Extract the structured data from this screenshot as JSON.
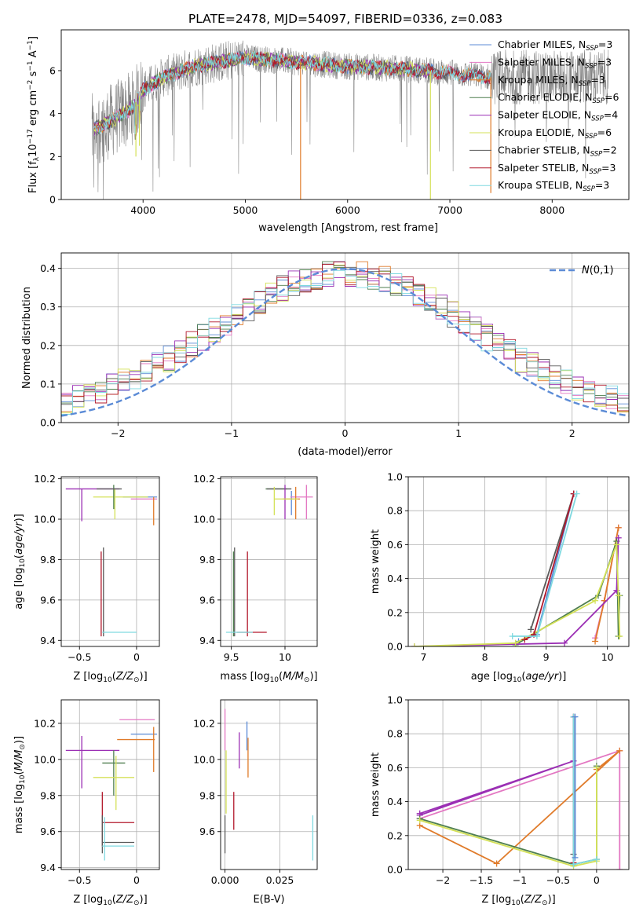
{
  "figure_title": "PLATE=2478, MJD=54097, FIBERID=0336, z=0.083",
  "colors": {
    "chabrier_miles": "#5b8bd6",
    "salpeter_miles": "#e377c2",
    "kroupa_miles": "#e07b2a",
    "chabrier_elodie": "#4f7f4f",
    "salpeter_elodie": "#9b2fb4",
    "kroupa_elodie": "#d4e157",
    "chabrier_stelib": "#5a5a5a",
    "salpeter_stelib": "#b2182b",
    "kroupa_stelib": "#7fd9e0",
    "data": "#808080",
    "normal": "#5b8bd6",
    "grid": "#b0b0b0"
  },
  "chart_data": [
    {
      "id": "spectrum",
      "type": "line",
      "xlabel": "wavelength [Angstrom, rest frame]",
      "ylabel": "Flux [f_λ 10^-17 erg cm^-2 s^-1 A^-1]",
      "xlim": [
        3200,
        8750
      ],
      "ylim": [
        0,
        7.9
      ],
      "xticks": [
        4000,
        5000,
        6000,
        7000,
        8000
      ],
      "yticks": [
        0,
        2,
        4,
        6
      ],
      "grid": false,
      "legend_position": "top-right",
      "legend": [
        "Chabrier MILES, N_SSP=3",
        "Salpeter MILES, N_SSP=3",
        "Kroupa MILES, N_SSP=3",
        "Chabrier ELODIE, N_SSP=6",
        "Salpeter ELODIE, N_SSP=4",
        "Kroupa ELODIE, N_SSP=6",
        "Chabrier STELIB, N_SSP=2",
        "Salpeter STELIB, N_SSP=3",
        "Kroupa STELIB, N_SSP=3"
      ],
      "data_range": [
        3500,
        8550
      ],
      "continuum": [
        [
          3500,
          3.2
        ],
        [
          3700,
          3.7
        ],
        [
          3900,
          4.3
        ],
        [
          4000,
          5.1
        ],
        [
          4200,
          5.7
        ],
        [
          4500,
          6.2
        ],
        [
          5000,
          6.6
        ],
        [
          5500,
          6.4
        ],
        [
          6000,
          6.2
        ],
        [
          6500,
          6.1
        ],
        [
          7000,
          5.9
        ],
        [
          7400,
          5.7
        ]
      ],
      "model_dips": [
        [
          5540,
          0
        ],
        [
          6810,
          0
        ],
        [
          3930,
          2.0
        ],
        [
          3965,
          2.5
        ],
        [
          7400,
          0.3
        ]
      ]
    },
    {
      "id": "residuals",
      "type": "histogram",
      "xlabel": "(data-model)/error",
      "ylabel": "Normed distribution",
      "xlim": [
        -2.5,
        2.5
      ],
      "ylim": [
        0,
        0.44
      ],
      "xticks": [
        -2,
        -1,
        0,
        1,
        2
      ],
      "yticks": [
        0.0,
        0.1,
        0.2,
        0.3,
        0.4
      ],
      "grid": true,
      "legend_position": "top-right",
      "normal_label": "N(0,1)",
      "bin_width": 0.1,
      "bins": 50
    },
    {
      "id": "age_vs_Z",
      "type": "errorbar",
      "xlabel": "Z [log10(Z/Z⊙)]",
      "ylabel": "age [log10(age/yr)]",
      "xlim": [
        -0.66,
        0.2
      ],
      "ylim": [
        9.37,
        10.21
      ],
      "xticks": [
        -0.5,
        0.0
      ],
      "yticks": [
        9.4,
        9.6,
        9.8,
        10.0,
        10.2
      ],
      "grid": true,
      "segments": [
        {
          "series": "chabrier_miles",
          "x": [
            -0.12,
            0.18
          ],
          "y": [
            10.11,
            10.11
          ]
        },
        {
          "series": "salpeter_miles",
          "x": [
            -0.05,
            0.18
          ],
          "y": [
            10.1,
            10.1
          ]
        },
        {
          "series": "kroupa_miles",
          "x": [
            0.15,
            0.15
          ],
          "y": [
            9.97,
            10.11
          ]
        },
        {
          "series": "salpeter_elodie",
          "x": [
            -0.62,
            -0.15
          ],
          "y": [
            10.15,
            10.15
          ]
        },
        {
          "series": "salpeter_elodie",
          "x": [
            -0.48,
            -0.48
          ],
          "y": [
            9.99,
            10.15
          ]
        },
        {
          "series": "kroupa_elodie",
          "x": [
            -0.38,
            0.1
          ],
          "y": [
            10.11,
            10.11
          ]
        },
        {
          "series": "kroupa_elodie",
          "x": [
            -0.19,
            -0.19
          ],
          "y": [
            10.0,
            10.15
          ]
        },
        {
          "series": "chabrier_elodie",
          "x": [
            -0.2,
            -0.2
          ],
          "y": [
            10.05,
            10.17
          ]
        },
        {
          "series": "chabrier_stelib",
          "x": [
            -0.35,
            -0.13
          ],
          "y": [
            10.15,
            10.15
          ]
        },
        {
          "series": "chabrier_stelib",
          "x": [
            -0.29,
            -0.29
          ],
          "y": [
            9.42,
            9.86
          ]
        },
        {
          "series": "salpeter_stelib",
          "x": [
            -0.31,
            -0.31
          ],
          "y": [
            9.42,
            9.84
          ]
        },
        {
          "series": "kroupa_stelib",
          "x": [
            -0.3,
            0.0
          ],
          "y": [
            9.44,
            9.44
          ]
        }
      ]
    },
    {
      "id": "age_vs_mass",
      "type": "errorbar",
      "xlabel": "mass [log10(M/M⊙)]",
      "ylabel": "",
      "xlim": [
        9.4,
        10.3
      ],
      "ylim": [
        9.37,
        10.21
      ],
      "xticks": [
        9.5,
        10.0
      ],
      "yticks": [
        9.4,
        9.6,
        9.8,
        10.0,
        10.2
      ],
      "grid": true,
      "segments": [
        {
          "series": "chabrier_elodie",
          "x": [
            9.82,
            10.02
          ],
          "y": [
            10.15,
            10.15
          ]
        },
        {
          "series": "chabrier_stelib",
          "x": [
            9.83,
            10.06
          ],
          "y": [
            10.15,
            10.15
          ]
        },
        {
          "series": "chabrier_miles",
          "x": [
            10.06,
            10.06
          ],
          "y": [
            10.02,
            10.14
          ]
        },
        {
          "series": "salpeter_miles",
          "x": [
            10.05,
            10.26
          ],
          "y": [
            10.11,
            10.11
          ]
        },
        {
          "series": "salpeter_miles",
          "x": [
            10.2,
            10.2
          ],
          "y": [
            10.0,
            10.17
          ]
        },
        {
          "series": "kroupa_miles",
          "x": [
            9.98,
            10.14
          ],
          "y": [
            10.1,
            10.1
          ]
        },
        {
          "series": "kroupa_miles",
          "x": [
            10.1,
            10.1
          ],
          "y": [
            10.0,
            10.16
          ]
        },
        {
          "series": "salpeter_elodie",
          "x": [
            10.0,
            10.0
          ],
          "y": [
            10.0,
            10.17
          ]
        },
        {
          "series": "kroupa_elodie",
          "x": [
            9.9,
            10.12
          ],
          "y": [
            10.1,
            10.1
          ]
        },
        {
          "series": "kroupa_elodie",
          "x": [
            9.9,
            9.9
          ],
          "y": [
            10.02,
            10.16
          ]
        },
        {
          "series": "chabrier_stelib",
          "x": [
            9.53,
            9.53
          ],
          "y": [
            9.42,
            9.86
          ]
        },
        {
          "series": "chabrier_elodie",
          "x": [
            9.52,
            9.52
          ],
          "y": [
            9.42,
            9.84
          ]
        },
        {
          "series": "salpeter_stelib",
          "x": [
            9.55,
            9.83
          ],
          "y": [
            9.44,
            9.44
          ]
        },
        {
          "series": "salpeter_stelib",
          "x": [
            9.65,
            9.65
          ],
          "y": [
            9.42,
            9.84
          ]
        },
        {
          "series": "kroupa_stelib",
          "x": [
            9.45,
            9.7
          ],
          "y": [
            9.44,
            9.44
          ]
        }
      ]
    },
    {
      "id": "weight_vs_age",
      "type": "line",
      "xlabel": "age [log10(age/yr)]",
      "ylabel": "mass weight",
      "xlim": [
        6.75,
        10.35
      ],
      "ylim": [
        0,
        1.0
      ],
      "xticks": [
        7,
        8,
        9,
        10
      ],
      "yticks": [
        0.0,
        0.2,
        0.4,
        0.6,
        0.8,
        1.0
      ],
      "grid": true,
      "series": [
        {
          "series": "chabrier_miles",
          "x": [
            8.55,
            8.85,
            9.45
          ],
          "y": [
            0.03,
            0.07,
            0.9
          ]
        },
        {
          "series": "salpeter_miles",
          "x": [
            9.8,
            9.95,
            10.18
          ],
          "y": [
            0.05,
            0.27,
            0.7
          ]
        },
        {
          "series": "kroupa_miles",
          "x": [
            9.8,
            9.95,
            10.18
          ],
          "y": [
            0.03,
            0.27,
            0.7
          ]
        },
        {
          "series": "chabrier_elodie",
          "x": [
            8.5,
            9.85,
            10.15,
            10.18,
            10.2
          ],
          "y": [
            0.01,
            0.3,
            0.62,
            0.06,
            0.3
          ]
        },
        {
          "series": "salpeter_elodie",
          "x": [
            6.85,
            9.3,
            10.15,
            10.18
          ],
          "y": [
            0.0,
            0.02,
            0.33,
            0.64
          ]
        },
        {
          "series": "kroupa_elodie",
          "x": [
            6.85,
            8.5,
            9.8,
            10.15,
            10.18,
            10.2
          ],
          "y": [
            0.0,
            0.02,
            0.27,
            0.6,
            0.3,
            0.06
          ]
        },
        {
          "series": "chabrier_stelib",
          "x": [
            8.75,
            9.45
          ],
          "y": [
            0.1,
            0.9
          ]
        },
        {
          "series": "salpeter_stelib",
          "x": [
            8.65,
            8.8,
            9.45
          ],
          "y": [
            0.04,
            0.07,
            0.9
          ]
        },
        {
          "series": "kroupa_stelib",
          "x": [
            8.45,
            8.85,
            9.5
          ],
          "y": [
            0.06,
            0.06,
            0.9
          ]
        }
      ]
    },
    {
      "id": "mass_vs_Z",
      "type": "errorbar",
      "xlabel": "Z [log10(Z/Z⊙)]",
      "ylabel": "mass [log10(M/M⊙)]",
      "xlim": [
        -0.66,
        0.2
      ],
      "ylim": [
        9.39,
        10.33
      ],
      "xticks": [
        -0.5,
        0.0
      ],
      "yticks": [
        9.4,
        9.6,
        9.8,
        10.0,
        10.2
      ],
      "grid": true,
      "segments": [
        {
          "series": "salpeter_miles",
          "x": [
            -0.15,
            0.16
          ],
          "y": [
            10.22,
            10.22
          ]
        },
        {
          "series": "chabrier_miles",
          "x": [
            -0.05,
            0.18
          ],
          "y": [
            10.14,
            10.14
          ]
        },
        {
          "series": "kroupa_miles",
          "x": [
            -0.17,
            0.16
          ],
          "y": [
            10.11,
            10.11
          ]
        },
        {
          "series": "kroupa_miles",
          "x": [
            0.15,
            0.15
          ],
          "y": [
            9.93,
            10.18
          ]
        },
        {
          "series": "salpeter_elodie",
          "x": [
            -0.62,
            -0.15
          ],
          "y": [
            10.05,
            10.05
          ]
        },
        {
          "series": "salpeter_elodie",
          "x": [
            -0.48,
            -0.48
          ],
          "y": [
            9.84,
            10.13
          ]
        },
        {
          "series": "chabrier_elodie",
          "x": [
            -0.3,
            -0.1
          ],
          "y": [
            9.98,
            9.98
          ]
        },
        {
          "series": "chabrier_elodie",
          "x": [
            -0.2,
            -0.2
          ],
          "y": [
            9.8,
            10.05
          ]
        },
        {
          "series": "kroupa_elodie",
          "x": [
            -0.38,
            -0.02
          ],
          "y": [
            9.9,
            9.9
          ]
        },
        {
          "series": "kroupa_elodie",
          "x": [
            -0.18,
            -0.18
          ],
          "y": [
            9.72,
            10.02
          ]
        },
        {
          "series": "salpeter_stelib",
          "x": [
            -0.3,
            -0.02
          ],
          "y": [
            9.65,
            9.65
          ]
        },
        {
          "series": "salpeter_stelib",
          "x": [
            -0.3,
            -0.3
          ],
          "y": [
            9.52,
            9.82
          ]
        },
        {
          "series": "chabrier_stelib",
          "x": [
            -0.3,
            -0.3
          ],
          "y": [
            9.48,
            9.69
          ]
        },
        {
          "series": "chabrier_stelib",
          "x": [
            -0.3,
            -0.02
          ],
          "y": [
            9.54,
            9.54
          ]
        },
        {
          "series": "kroupa_stelib",
          "x": [
            -0.3,
            -0.02
          ],
          "y": [
            9.52,
            9.52
          ]
        },
        {
          "series": "kroupa_stelib",
          "x": [
            -0.28,
            -0.28
          ],
          "y": [
            9.44,
            9.68
          ]
        }
      ]
    },
    {
      "id": "mass_vs_ebv",
      "type": "errorbar",
      "xlabel": "E(B-V)",
      "ylabel": "",
      "xlim": [
        -0.002,
        0.042
      ],
      "ylim": [
        9.39,
        10.33
      ],
      "xticks": [
        0.0,
        0.025
      ],
      "xticklabels": [
        "0.000",
        "0.025"
      ],
      "yticks": [
        9.6,
        9.8,
        10.0,
        10.2
      ],
      "grid": true,
      "segments": [
        {
          "series": "salpeter_miles",
          "x": [
            0.0,
            0.0
          ],
          "y": [
            10.05,
            10.28
          ]
        },
        {
          "series": "kroupa_elodie",
          "x": [
            0.0005,
            0.0005
          ],
          "y": [
            9.7,
            10.05
          ]
        },
        {
          "series": "chabrier_stelib",
          "x": [
            0.0,
            0.0
          ],
          "y": [
            9.48,
            9.69
          ]
        },
        {
          "series": "salpeter_stelib",
          "x": [
            0.004,
            0.004
          ],
          "y": [
            9.61,
            9.82
          ]
        },
        {
          "series": "chabrier_miles",
          "x": [
            0.01,
            0.01
          ],
          "y": [
            10.05,
            10.21
          ]
        },
        {
          "series": "kroupa_miles",
          "x": [
            0.0105,
            0.0105
          ],
          "y": [
            9.9,
            10.12
          ]
        },
        {
          "series": "salpeter_elodie",
          "x": [
            0.0065,
            0.0065
          ],
          "y": [
            9.95,
            10.15
          ]
        },
        {
          "series": "kroupa_stelib",
          "x": [
            0.04,
            0.04
          ],
          "y": [
            9.44,
            9.69
          ]
        }
      ]
    },
    {
      "id": "weight_vs_Z",
      "type": "line",
      "xlabel": "Z [log10(Z/Z⊙)]",
      "ylabel": "mass weight",
      "xlim": [
        -2.45,
        0.42
      ],
      "ylim": [
        0,
        1.0
      ],
      "xticks": [
        -2.0,
        -1.5,
        -1.0,
        -0.5,
        0.0
      ],
      "yticks": [
        0.0,
        0.2,
        0.4,
        0.6,
        0.8,
        1.0
      ],
      "grid": true,
      "series": [
        {
          "series": "salpeter_elodie",
          "x": [
            -2.3,
            -0.3,
            -2.3
          ],
          "y": [
            0.33,
            0.64,
            0.32
          ]
        },
        {
          "series": "salpeter_miles",
          "x": [
            -2.3,
            0.3,
            0.3
          ],
          "y": [
            0.3,
            0.7,
            0.0
          ]
        },
        {
          "series": "kroupa_miles",
          "x": [
            -2.3,
            -1.3,
            0.3,
            0.0
          ],
          "y": [
            0.26,
            0.035,
            0.7,
            0.59
          ]
        },
        {
          "series": "chabrier_elodie",
          "x": [
            -2.3,
            -0.3,
            0.0,
            0.0
          ],
          "y": [
            0.3,
            0.03,
            0.06,
            0.61
          ]
        },
        {
          "series": "kroupa_elodie",
          "x": [
            -2.3,
            -0.3,
            0.0,
            0.0
          ],
          "y": [
            0.29,
            0.02,
            0.05,
            0.6
          ]
        },
        {
          "series": "chabrier_stelib",
          "x": [
            -0.3,
            -0.3
          ],
          "y": [
            0.9,
            0.09
          ]
        },
        {
          "series": "salpeter_stelib",
          "x": [
            -0.3,
            -0.3
          ],
          "y": [
            0.9,
            0.04
          ]
        },
        {
          "series": "kroupa_stelib",
          "x": [
            -0.3,
            -0.3,
            0.0
          ],
          "y": [
            0.9,
            0.03,
            0.06
          ]
        },
        {
          "series": "chabrier_miles",
          "x": [
            -0.28,
            -0.28
          ],
          "y": [
            0.9,
            0.07
          ]
        }
      ]
    }
  ]
}
